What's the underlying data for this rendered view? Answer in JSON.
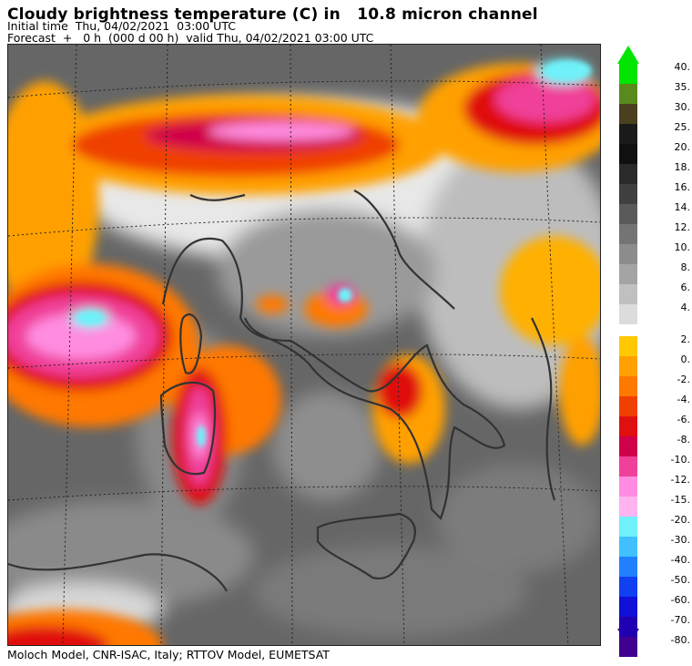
{
  "header": {
    "title": "Cloudy brightness temperature (C) in   10.8 micron channel",
    "initial_time": "Initial time  Thu, 04/02/2021  03:00 UTC",
    "forecast": "Forecast  +   0 h  (000 d 00 h)  valid Thu, 04/02/2021 03:00 UTC"
  },
  "footer": {
    "credit": "Moloch Model, CNR-ISAC, Italy; RTTOV Model, EUMETSAT"
  },
  "colorbar": {
    "unit": "C",
    "warm_scale": [
      {
        "label": "40.",
        "color": "#00e600"
      },
      {
        "label": "35.",
        "color": "#5a8a1e"
      },
      {
        "label": "30.",
        "color": "#4a4020"
      },
      {
        "label": "25.",
        "color": "#1a1a1a"
      },
      {
        "label": "20.",
        "color": "#101010"
      },
      {
        "label": "18.",
        "color": "#2a2a2a"
      },
      {
        "label": "16.",
        "color": "#404040"
      },
      {
        "label": "14.",
        "color": "#5a5a5a"
      },
      {
        "label": "12.",
        "color": "#747474"
      },
      {
        "label": "10.",
        "color": "#8c8c8c"
      },
      {
        "label": "8.",
        "color": "#a4a4a4"
      },
      {
        "label": "6.",
        "color": "#c0c0c0"
      },
      {
        "label": "4.",
        "color": "#dcdcdc"
      }
    ],
    "cold_scale": [
      {
        "label": "2.",
        "color": "#ffc800"
      },
      {
        "label": "0.",
        "color": "#ffa000"
      },
      {
        "label": "-2.",
        "color": "#ff7800"
      },
      {
        "label": "-4.",
        "color": "#f04000"
      },
      {
        "label": "-6.",
        "color": "#e01010"
      },
      {
        "label": "-8.",
        "color": "#d0004a"
      },
      {
        "label": "-10.",
        "color": "#f0409a"
      },
      {
        "label": "-12.",
        "color": "#ff8ce0"
      },
      {
        "label": "-15.",
        "color": "#ffb4f0"
      },
      {
        "label": "-20.",
        "color": "#70f0f8"
      },
      {
        "label": "-30.",
        "color": "#40c0ff"
      },
      {
        "label": "-40.",
        "color": "#2080ff"
      },
      {
        "label": "-50.",
        "color": "#1040f0"
      },
      {
        "label": "-60.",
        "color": "#1010d8"
      },
      {
        "label": "-70.",
        "color": "#2000b0"
      },
      {
        "label": "-80.",
        "color": "#400090"
      }
    ]
  }
}
